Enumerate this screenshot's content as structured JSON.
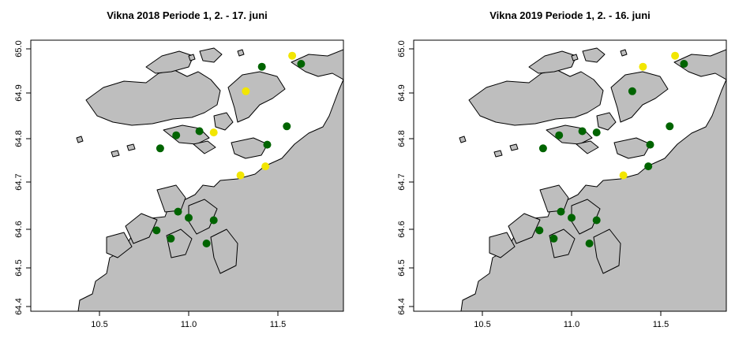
{
  "panels": [
    {
      "title": "Vikna 2018 Periode 1, 2. - 17. juni",
      "xticks": [
        "10.5",
        "11.0",
        "11.5"
      ],
      "yticks": [
        "64.4",
        "64.5",
        "64.6",
        "64.7",
        "64.8",
        "64.9",
        "65.0"
      ],
      "points": [
        {
          "lon": 11.58,
          "lat": 64.985,
          "color": "yellow"
        },
        {
          "lon": 11.63,
          "lat": 64.965,
          "color": "green"
        },
        {
          "lon": 11.41,
          "lat": 64.958,
          "color": "green"
        },
        {
          "lon": 11.32,
          "lat": 64.898,
          "color": "yellow"
        },
        {
          "lon": 11.55,
          "lat": 64.812,
          "color": "green"
        },
        {
          "lon": 11.06,
          "lat": 64.8,
          "color": "green"
        },
        {
          "lon": 11.14,
          "lat": 64.797,
          "color": "yellow"
        },
        {
          "lon": 10.93,
          "lat": 64.79,
          "color": "green"
        },
        {
          "lon": 11.44,
          "lat": 64.767,
          "color": "green"
        },
        {
          "lon": 10.84,
          "lat": 64.758,
          "color": "green"
        },
        {
          "lon": 11.43,
          "lat": 64.714,
          "color": "yellow"
        },
        {
          "lon": 11.29,
          "lat": 64.692,
          "color": "yellow"
        },
        {
          "lon": 10.94,
          "lat": 64.603,
          "color": "green"
        },
        {
          "lon": 11.0,
          "lat": 64.588,
          "color": "green"
        },
        {
          "lon": 11.14,
          "lat": 64.582,
          "color": "green"
        },
        {
          "lon": 10.82,
          "lat": 64.557,
          "color": "green"
        },
        {
          "lon": 10.9,
          "lat": 64.537,
          "color": "green"
        },
        {
          "lon": 11.1,
          "lat": 64.525,
          "color": "green"
        }
      ]
    },
    {
      "title": "Vikna 2019 Periode 1, 2. - 16. juni",
      "xticks": [
        "10.5",
        "11.0",
        "11.5"
      ],
      "yticks": [
        "64.4",
        "64.5",
        "64.6",
        "64.7",
        "64.8",
        "64.9",
        "65.0"
      ],
      "points": [
        {
          "lon": 11.58,
          "lat": 64.985,
          "color": "yellow"
        },
        {
          "lon": 11.63,
          "lat": 64.965,
          "color": "green"
        },
        {
          "lon": 11.4,
          "lat": 64.958,
          "color": "yellow"
        },
        {
          "lon": 11.34,
          "lat": 64.898,
          "color": "green"
        },
        {
          "lon": 11.55,
          "lat": 64.812,
          "color": "green"
        },
        {
          "lon": 11.06,
          "lat": 64.8,
          "color": "green"
        },
        {
          "lon": 11.14,
          "lat": 64.797,
          "color": "green"
        },
        {
          "lon": 10.93,
          "lat": 64.79,
          "color": "green"
        },
        {
          "lon": 11.44,
          "lat": 64.767,
          "color": "green"
        },
        {
          "lon": 10.84,
          "lat": 64.758,
          "color": "green"
        },
        {
          "lon": 11.43,
          "lat": 64.714,
          "color": "green"
        },
        {
          "lon": 11.29,
          "lat": 64.692,
          "color": "yellow"
        },
        {
          "lon": 10.94,
          "lat": 64.603,
          "color": "green"
        },
        {
          "lon": 11.0,
          "lat": 64.588,
          "color": "green"
        },
        {
          "lon": 11.14,
          "lat": 64.582,
          "color": "green"
        },
        {
          "lon": 10.82,
          "lat": 64.557,
          "color": "green"
        },
        {
          "lon": 10.9,
          "lat": 64.537,
          "color": "green"
        },
        {
          "lon": 11.1,
          "lat": 64.525,
          "color": "green"
        }
      ]
    }
  ],
  "colors": {
    "green": "#006400",
    "yellow": "#f2e600",
    "land": "#bebebe"
  }
}
